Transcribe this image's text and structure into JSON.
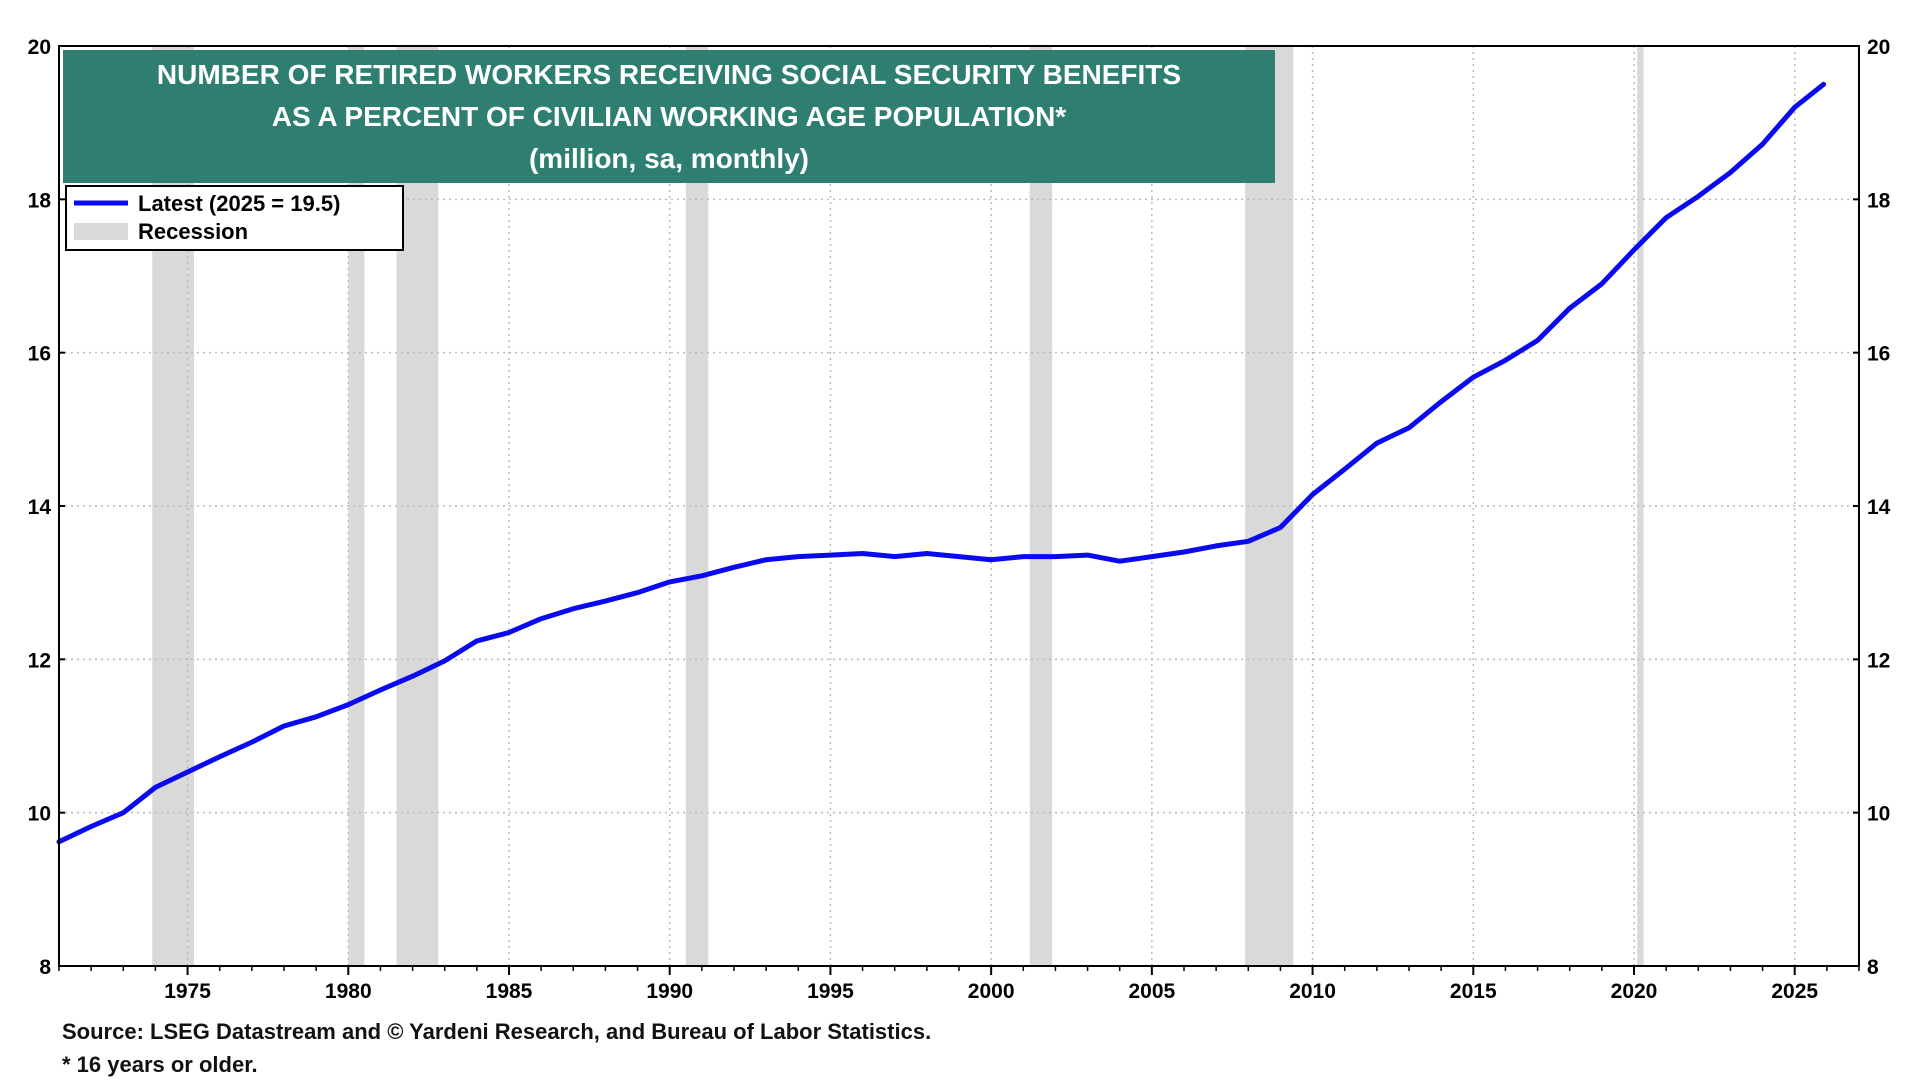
{
  "chart_data": {
    "type": "line",
    "title_lines": [
      "NUMBER OF RETIRED WORKERS RECEIVING SOCIAL SECURITY BENEFITS",
      "AS A PERCENT OF CIVILIAN WORKING AGE POPULATION*",
      "(million, sa, monthly)"
    ],
    "xlim": [
      1971,
      2027
    ],
    "ylim": [
      8,
      20
    ],
    "yticks": [
      8,
      10,
      12,
      14,
      16,
      18,
      20
    ],
    "xticks": [
      1975,
      1980,
      1985,
      1990,
      1995,
      2000,
      2005,
      2010,
      2015,
      2020,
      2025
    ],
    "grid": true,
    "legend_position": "top-left",
    "legend": [
      {
        "label": "Latest (2025 = 19.5)",
        "kind": "line",
        "color": "#0a0af0"
      },
      {
        "label": "Recession",
        "kind": "band",
        "color": "#d9d9d9"
      }
    ],
    "colors": {
      "series": "#0a0af0",
      "recession": "#d9d9d9",
      "title_bg": "#2e7f72",
      "title_text": "#ffffff",
      "grid": "#bbbbbb"
    },
    "recessions": [
      [
        1973.9,
        1975.2
      ],
      [
        1980.0,
        1980.5
      ],
      [
        1981.5,
        1982.8
      ],
      [
        1990.5,
        1991.2
      ],
      [
        2001.2,
        2001.9
      ],
      [
        2007.9,
        2009.4
      ],
      [
        2020.1,
        2020.3
      ]
    ],
    "series": [
      {
        "name": "Latest (2025 = 19.5)",
        "points": [
          [
            1971.0,
            9.62
          ],
          [
            1972.0,
            9.82
          ],
          [
            1973.0,
            10.0
          ],
          [
            1974.0,
            10.33
          ],
          [
            1975.0,
            10.53
          ],
          [
            1976.0,
            10.73
          ],
          [
            1977.0,
            10.92
          ],
          [
            1978.0,
            11.13
          ],
          [
            1979.0,
            11.25
          ],
          [
            1980.0,
            11.41
          ],
          [
            1981.0,
            11.6
          ],
          [
            1982.0,
            11.78
          ],
          [
            1983.0,
            11.98
          ],
          [
            1984.0,
            12.24
          ],
          [
            1985.0,
            12.35
          ],
          [
            1986.0,
            12.53
          ],
          [
            1987.0,
            12.66
          ],
          [
            1988.0,
            12.76
          ],
          [
            1989.0,
            12.87
          ],
          [
            1990.0,
            13.01
          ],
          [
            1991.0,
            13.09
          ],
          [
            1992.0,
            13.2
          ],
          [
            1993.0,
            13.3
          ],
          [
            1994.0,
            13.34
          ],
          [
            1995.0,
            13.36
          ],
          [
            1996.0,
            13.38
          ],
          [
            1997.0,
            13.34
          ],
          [
            1998.0,
            13.38
          ],
          [
            1999.0,
            13.34
          ],
          [
            2000.0,
            13.3
          ],
          [
            2001.0,
            13.34
          ],
          [
            2002.0,
            13.34
          ],
          [
            2003.0,
            13.36
          ],
          [
            2004.0,
            13.28
          ],
          [
            2005.0,
            13.34
          ],
          [
            2006.0,
            13.4
          ],
          [
            2007.0,
            13.48
          ],
          [
            2008.0,
            13.54
          ],
          [
            2009.0,
            13.72
          ],
          [
            2010.0,
            14.15
          ],
          [
            2011.0,
            14.48
          ],
          [
            2012.0,
            14.82
          ],
          [
            2013.0,
            15.02
          ],
          [
            2014.0,
            15.36
          ],
          [
            2015.0,
            15.68
          ],
          [
            2016.0,
            15.9
          ],
          [
            2017.0,
            16.16
          ],
          [
            2018.0,
            16.58
          ],
          [
            2019.0,
            16.9
          ],
          [
            2020.0,
            17.34
          ],
          [
            2021.0,
            17.76
          ],
          [
            2022.0,
            18.04
          ],
          [
            2023.0,
            18.35
          ],
          [
            2024.0,
            18.72
          ],
          [
            2025.0,
            19.2
          ],
          [
            2025.9,
            19.5
          ]
        ]
      }
    ]
  },
  "footnotes": {
    "source": "Source: LSEG Datastream and © Yardeni Research, and Bureau of Labor Statistics.",
    "note": "* 16 years or older."
  }
}
